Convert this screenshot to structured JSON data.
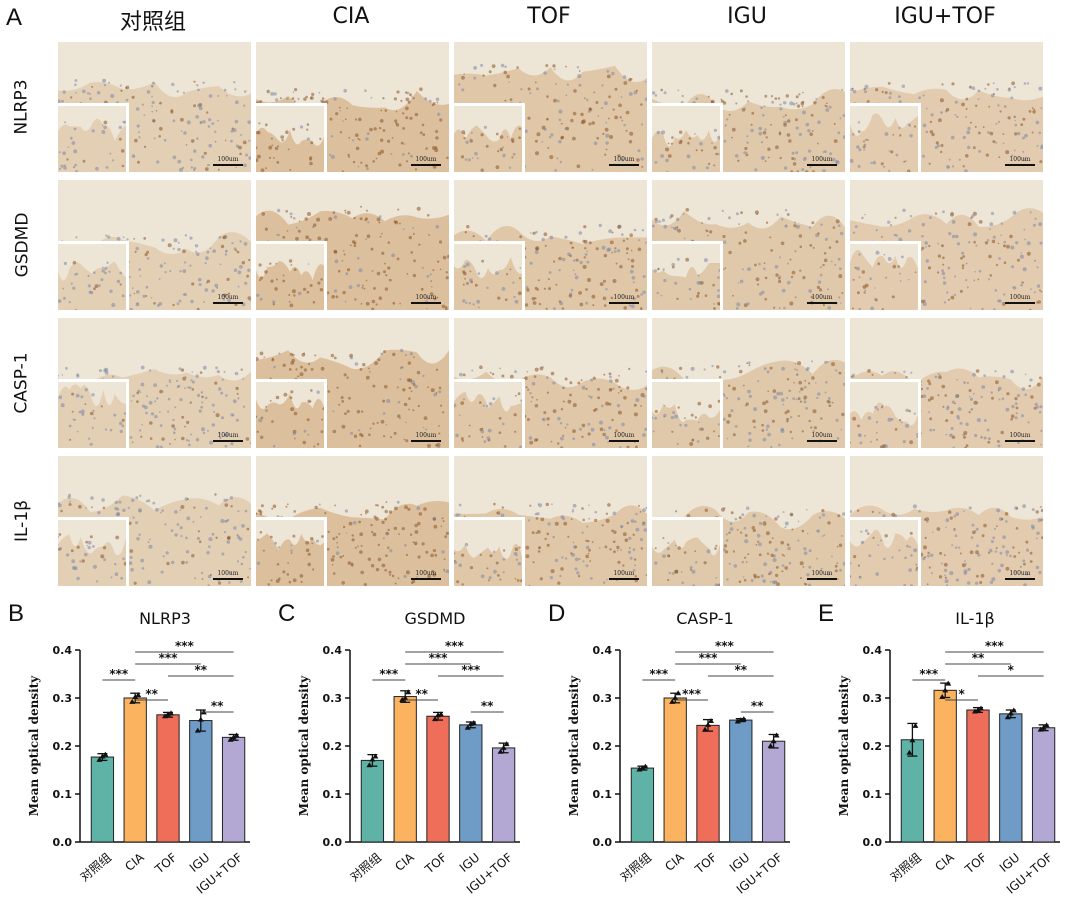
{
  "panel_labels": {
    "a": "A",
    "b": "B",
    "c": "C",
    "d": "D",
    "e": "E"
  },
  "columns": [
    "对照组",
    "CIA",
    "TOF",
    "IGU",
    "IGU+TOF"
  ],
  "rows": [
    "NLRP3",
    "GSDMD",
    "CASP-1",
    "IL-1β"
  ],
  "scale_bar_label": "100um",
  "colors": {
    "groups": [
      "#5fb3a6",
      "#fbb35f",
      "#ee6e5a",
      "#6f9cc7",
      "#b3a7d3"
    ],
    "tissue_light": "#ede5d6",
    "tissue_stain": "#c9955a",
    "nuclei_blue": "#7c86a8",
    "nuclei_brown": "#8a5326"
  },
  "chart_data": [
    {
      "type": "bar",
      "title": "NLRP3",
      "ylabel": "Mean optical density",
      "xlabel": "",
      "categories": [
        "对照组",
        "CIA",
        "TOF",
        "IGU",
        "IGU+TOF"
      ],
      "values": [
        0.177,
        0.3,
        0.265,
        0.253,
        0.218
      ],
      "errors": [
        0.007,
        0.01,
        0.005,
        0.022,
        0.006
      ],
      "points": [
        [
          0.171,
          0.178,
          0.182
        ],
        [
          0.292,
          0.302,
          0.306
        ],
        [
          0.262,
          0.266,
          0.268
        ],
        [
          0.232,
          0.255,
          0.27
        ],
        [
          0.213,
          0.218,
          0.222
        ]
      ],
      "ylim": [
        0,
        0.4
      ],
      "yticks": [
        "0.0",
        "0.1",
        "0.2",
        "0.3",
        "0.4"
      ],
      "significance": [
        {
          "from": 0,
          "to": 1,
          "label": "***"
        },
        {
          "from": 1,
          "to": 2,
          "label": "**"
        },
        {
          "from": 1,
          "to": 3,
          "label": "***"
        },
        {
          "from": 1,
          "to": 4,
          "label": "***"
        },
        {
          "from": 2,
          "to": 4,
          "label": "**"
        },
        {
          "from": 3,
          "to": 4,
          "label": "**"
        }
      ]
    },
    {
      "type": "bar",
      "title": "GSDMD",
      "ylabel": "Mean optical density",
      "xlabel": "",
      "categories": [
        "对照组",
        "CIA",
        "TOF",
        "IGU",
        "IGU+TOF"
      ],
      "values": [
        0.17,
        0.303,
        0.262,
        0.244,
        0.196
      ],
      "errors": [
        0.012,
        0.012,
        0.008,
        0.006,
        0.01
      ],
      "points": [
        [
          0.16,
          0.172,
          0.178
        ],
        [
          0.296,
          0.3,
          0.312
        ],
        [
          0.256,
          0.264,
          0.266
        ],
        [
          0.238,
          0.246,
          0.248
        ],
        [
          0.188,
          0.196,
          0.204
        ]
      ],
      "ylim": [
        0,
        0.4
      ],
      "yticks": [
        "0.0",
        "0.1",
        "0.2",
        "0.3",
        "0.4"
      ],
      "significance": [
        {
          "from": 0,
          "to": 1,
          "label": "***"
        },
        {
          "from": 1,
          "to": 2,
          "label": "**"
        },
        {
          "from": 1,
          "to": 3,
          "label": "***"
        },
        {
          "from": 1,
          "to": 4,
          "label": "***"
        },
        {
          "from": 2,
          "to": 4,
          "label": "***"
        },
        {
          "from": 3,
          "to": 4,
          "label": "**"
        }
      ]
    },
    {
      "type": "bar",
      "title": "CASP-1",
      "ylabel": "Mean optical density",
      "xlabel": "",
      "categories": [
        "对照组",
        "CIA",
        "TOF",
        "IGU",
        "IGU+TOF"
      ],
      "values": [
        0.154,
        0.3,
        0.243,
        0.254,
        0.21
      ],
      "errors": [
        0.004,
        0.01,
        0.012,
        0.003,
        0.014
      ],
      "points": [
        [
          0.151,
          0.154,
          0.157
        ],
        [
          0.292,
          0.3,
          0.31
        ],
        [
          0.234,
          0.244,
          0.252
        ],
        [
          0.251,
          0.254,
          0.256
        ],
        [
          0.2,
          0.21,
          0.222
        ]
      ],
      "ylim": [
        0,
        0.4
      ],
      "yticks": [
        "0.0",
        "0.1",
        "0.2",
        "0.3",
        "0.4"
      ],
      "significance": [
        {
          "from": 0,
          "to": 1,
          "label": "***"
        },
        {
          "from": 1,
          "to": 2,
          "label": "***"
        },
        {
          "from": 1,
          "to": 3,
          "label": "***"
        },
        {
          "from": 1,
          "to": 4,
          "label": "***"
        },
        {
          "from": 2,
          "to": 4,
          "label": "**"
        },
        {
          "from": 3,
          "to": 4,
          "label": "**"
        }
      ]
    },
    {
      "type": "bar",
      "title": "IL-1β",
      "ylabel": "Mean optical density",
      "xlabel": "",
      "categories": [
        "对照组",
        "CIA",
        "TOF",
        "IGU",
        "IGU+TOF"
      ],
      "values": [
        0.213,
        0.316,
        0.275,
        0.267,
        0.238
      ],
      "errors": [
        0.034,
        0.015,
        0.005,
        0.008,
        0.006
      ],
      "points": [
        [
          0.186,
          0.212,
          0.242
        ],
        [
          0.302,
          0.316,
          0.33
        ],
        [
          0.272,
          0.275,
          0.278
        ],
        [
          0.26,
          0.268,
          0.274
        ],
        [
          0.234,
          0.238,
          0.243
        ]
      ],
      "ylim": [
        0,
        0.4
      ],
      "yticks": [
        "0.0",
        "0.1",
        "0.2",
        "0.3",
        "0.4"
      ],
      "significance": [
        {
          "from": 0,
          "to": 1,
          "label": "***"
        },
        {
          "from": 1,
          "to": 2,
          "label": "*"
        },
        {
          "from": 1,
          "to": 3,
          "label": "**"
        },
        {
          "from": 1,
          "to": 4,
          "label": "***"
        },
        {
          "from": 2,
          "to": 4,
          "label": "*"
        }
      ]
    }
  ]
}
